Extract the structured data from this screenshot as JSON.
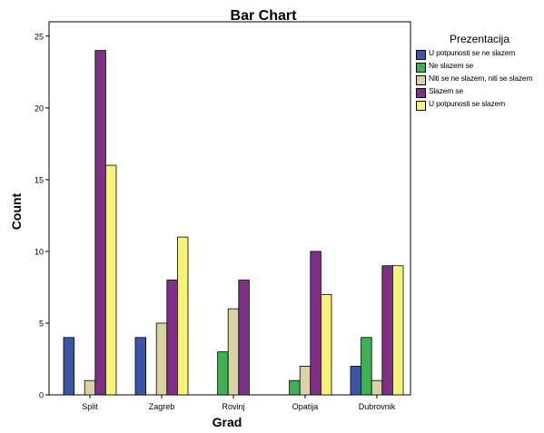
{
  "chart_data": {
    "type": "bar",
    "title": "Bar Chart",
    "xlabel": "Grad",
    "ylabel": "Count",
    "categories": [
      "Split",
      "Zagreb",
      "Rovinj",
      "Opatija",
      "Dubrovnik"
    ],
    "ylim": [
      0,
      26
    ],
    "yticks": [
      0,
      5,
      10,
      15,
      20,
      25
    ],
    "grid": false,
    "legend_position": "right",
    "legend_title": "Prezentacija",
    "series": [
      {
        "name": "U potpunosti se ne slazem",
        "color": "#3d55a6",
        "values": [
          4,
          4,
          0,
          0,
          2
        ]
      },
      {
        "name": "Ne slazem se",
        "color": "#3fae55",
        "values": [
          0,
          0,
          3,
          1,
          4
        ]
      },
      {
        "name": "Niti se ne slazem, niti se slazem",
        "color": "#d8d2a4",
        "values": [
          1,
          5,
          6,
          2,
          1
        ]
      },
      {
        "name": "Slazem se",
        "color": "#7e2f86",
        "values": [
          24,
          8,
          8,
          10,
          9
        ]
      },
      {
        "name": "U potpunosti se slazem",
        "color": "#f6f37a",
        "values": [
          16,
          11,
          0,
          7,
          9
        ]
      }
    ]
  }
}
